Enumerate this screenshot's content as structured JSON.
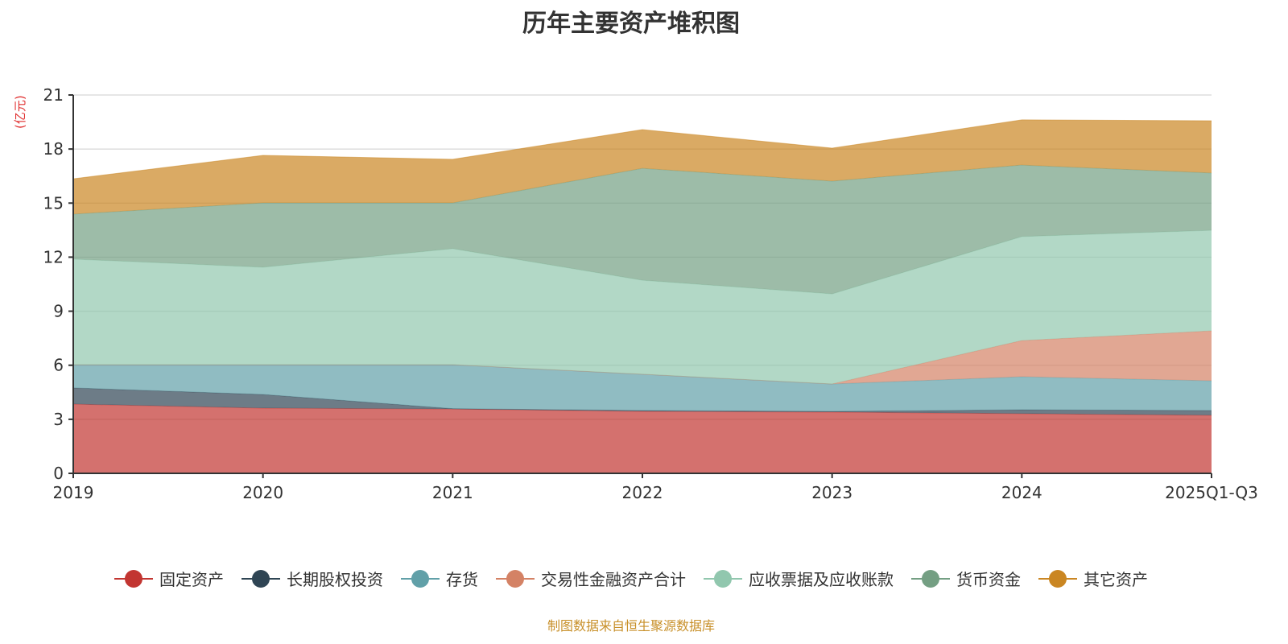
{
  "chart_data": {
    "type": "area",
    "stacked": true,
    "title": "历年主要资产堆积图",
    "ylabel": "(亿元)",
    "xlabel": "",
    "ylim": [
      0,
      21
    ],
    "yticks": [
      0,
      3,
      6,
      9,
      12,
      15,
      18,
      21
    ],
    "categories": [
      "2019",
      "2020",
      "2021",
      "2022",
      "2023",
      "2024",
      "2025Q1-Q3"
    ],
    "series": [
      {
        "name": "固定资产",
        "color": "#c23531",
        "values": [
          3.84,
          3.62,
          3.57,
          3.44,
          3.4,
          3.31,
          3.22
        ]
      },
      {
        "name": "长期股权投资",
        "color": "#2f4554",
        "values": [
          0.9,
          0.76,
          0.02,
          0.05,
          0.04,
          0.22,
          0.27
        ]
      },
      {
        "name": "存货",
        "color": "#61a0a8",
        "values": [
          1.29,
          1.65,
          2.44,
          2.01,
          1.52,
          1.83,
          1.65
        ]
      },
      {
        "name": "交易性金融资产合计",
        "color": "#d48265",
        "values": [
          0,
          0,
          0,
          0,
          0,
          2.01,
          2.77
        ]
      },
      {
        "name": "应收票据及应收账款",
        "color": "#91c7ae",
        "values": [
          5.86,
          5.41,
          6.44,
          5.22,
          5.0,
          5.77,
          5.58
        ]
      },
      {
        "name": "货币资金",
        "color": "#749f83",
        "values": [
          2.5,
          3.57,
          2.54,
          6.21,
          6.26,
          3.97,
          3.18
        ]
      },
      {
        "name": "其它资产",
        "color": "#ca8622",
        "values": [
          1.96,
          2.64,
          2.42,
          2.15,
          1.83,
          2.51,
          2.9
        ]
      }
    ],
    "grid": true,
    "legend_position": "bottom"
  },
  "source": "制图数据来自恒生聚源数据库"
}
